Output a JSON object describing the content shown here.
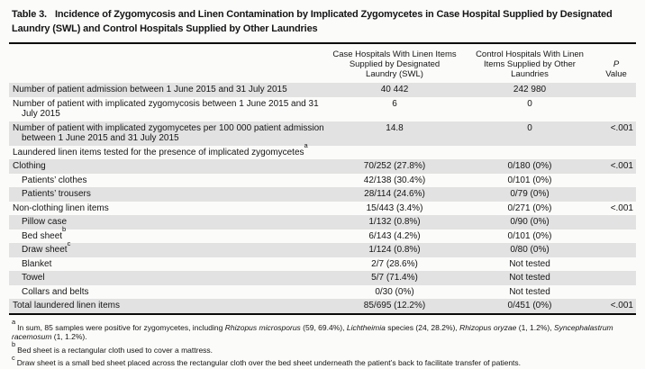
{
  "title": {
    "label": "Table 3.",
    "text": "Incidence of Zygomycosis and Linen Contamination by Implicated Zygomycetes in Case Hospital Supplied by Designated Laundry (SWL) and Control Hospitals Supplied by Other Laundries"
  },
  "table": {
    "columns": {
      "case_lines": [
        "Case Hospitals With Linen Items",
        "Supplied by Designated",
        "Laundry (SWL)"
      ],
      "control_lines": [
        "Control Hospitals With Linen",
        "Items Supplied by Other",
        "Laundries"
      ],
      "p_lines": [
        "P",
        "Value"
      ]
    },
    "rows": [
      {
        "label": "Number of patient admission between 1 June 2015 and 31 July 2015",
        "case": "40 442",
        "control": "242 980",
        "p": ""
      },
      {
        "label": "Number of patient with implicated zygomycosis between 1 June 2015 and 31 July 2015",
        "case": "6",
        "control": "0",
        "p": ""
      },
      {
        "label": "Number of patient with implicated zygomycetes per 100 000 patient admission between 1 June 2015 and 31 July 2015",
        "case": "14.8",
        "control": "0",
        "p": "<.001"
      },
      {
        "label": "Laundered linen items tested for the presence of implicated zygomycetes",
        "sup": "a",
        "case": "",
        "control": "",
        "p": ""
      },
      {
        "label": "Clothing",
        "case": "70/252 (27.8%)",
        "control": "0/180 (0%)",
        "p": "<.001"
      },
      {
        "label": "Patients’ clothes",
        "indent": 1,
        "case": "42/138 (30.4%)",
        "control": "0/101 (0%)",
        "p": ""
      },
      {
        "label": "Patients’ trousers",
        "indent": 1,
        "case": "28/114 (24.6%)",
        "control": "0/79 (0%)",
        "p": ""
      },
      {
        "label": "Non-clothing linen items",
        "case": "15/443 (3.4%)",
        "control": "0/271 (0%)",
        "p": "<.001"
      },
      {
        "label": "Pillow case",
        "indent": 1,
        "case": "1/132 (0.8%)",
        "control": "0/90 (0%)",
        "p": ""
      },
      {
        "label": "Bed sheet",
        "sup": "b",
        "indent": 1,
        "case": "6/143 (4.2%)",
        "control": "0/101 (0%)",
        "p": ""
      },
      {
        "label": "Draw sheet",
        "sup": "c",
        "indent": 1,
        "case": "1/124 (0.8%)",
        "control": "0/80 (0%)",
        "p": ""
      },
      {
        "label": "Blanket",
        "indent": 1,
        "case": "2/7 (28.6%)",
        "control": "Not tested",
        "p": ""
      },
      {
        "label": "Towel",
        "indent": 1,
        "case": "5/7 (71.4%)",
        "control": "Not tested",
        "p": ""
      },
      {
        "label": "Collars and belts",
        "indent": 1,
        "case": "0/30 (0%)",
        "control": "Not tested",
        "p": ""
      },
      {
        "label": "Total laundered linen items",
        "case": "85/695 (12.2%)",
        "control": "0/451 (0%)",
        "p": "<.001"
      }
    ]
  },
  "footnotes": [
    {
      "marker": "a",
      "segments": [
        {
          "t": "In sum, 85 samples were positive for zygomycetes, including "
        },
        {
          "t": "Rhizopus microsporus",
          "i": true
        },
        {
          "t": " (59, 69.4%), "
        },
        {
          "t": "Lichtheimia",
          "i": true
        },
        {
          "t": " species (24, 28.2%), "
        },
        {
          "t": "Rhizopus oryzae",
          "i": true
        },
        {
          "t": " (1, 1.2%), "
        },
        {
          "t": "Syncephalastrum racemosum",
          "i": true
        },
        {
          "t": " (1, 1.2%)."
        }
      ]
    },
    {
      "marker": "b",
      "segments": [
        {
          "t": "Bed sheet is a rectangular cloth used to cover a mattress."
        }
      ]
    },
    {
      "marker": "c",
      "segments": [
        {
          "t": "Draw sheet is a small bed sheet placed across the rectangular cloth over the bed sheet underneath the patient’s back to facilitate transfer of patients."
        }
      ]
    }
  ],
  "colors": {
    "stripe": "#e2e2e2",
    "rule": "#0a0a0a",
    "background": "#fbfbfa",
    "text": "#151515"
  }
}
